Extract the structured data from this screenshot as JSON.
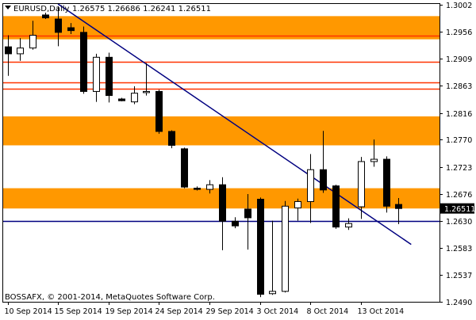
{
  "header": {
    "symbol": "EURUSD,Daily",
    "ohlc": "1.26575 1.26686 1.26241 1.26511"
  },
  "footer": {
    "copyright": "BOSSAFX, © 2001-2014, MetaQuotes Software Corp."
  },
  "chart_data": {
    "type": "candlestick",
    "symbol": "EURUSD",
    "timeframe": "Daily",
    "ylim": [
      1.249,
      1.3004
    ],
    "y_ticks": [
      1.3002,
      1.2956,
      1.2909,
      1.2863,
      1.2816,
      1.277,
      1.2723,
      1.2676,
      1.263,
      1.2583,
      1.2537,
      1.249
    ],
    "x_tick_labels": [
      {
        "label": "10 Sep 2014",
        "index": 0
      },
      {
        "label": "15 Sep 2014",
        "index": 4
      },
      {
        "label": "19 Sep 2014",
        "index": 8
      },
      {
        "label": "24 Sep 2014",
        "index": 12
      },
      {
        "label": "29 Sep 2014",
        "index": 16
      },
      {
        "label": "3 Oct 2014",
        "index": 20
      },
      {
        "label": "8 Oct 2014",
        "index": 24
      },
      {
        "label": "13 Oct 2014",
        "index": 28
      }
    ],
    "candles": [
      {
        "o": 1.293,
        "h": 1.295,
        "l": 1.288,
        "c": 1.2918
      },
      {
        "o": 1.2918,
        "h": 1.2945,
        "l": 1.2906,
        "c": 1.2928
      },
      {
        "o": 1.2928,
        "h": 1.2975,
        "l": 1.2925,
        "c": 1.295
      },
      {
        "o": 1.2985,
        "h": 1.2989,
        "l": 1.2978,
        "c": 1.298
      },
      {
        "o": 1.2978,
        "h": 1.3,
        "l": 1.2931,
        "c": 1.2955
      },
      {
        "o": 1.2963,
        "h": 1.2971,
        "l": 1.2952,
        "c": 1.2958
      },
      {
        "o": 1.2955,
        "h": 1.2965,
        "l": 1.2849,
        "c": 1.2853
      },
      {
        "o": 1.2853,
        "h": 1.2918,
        "l": 1.2835,
        "c": 1.2912
      },
      {
        "o": 1.2912,
        "h": 1.292,
        "l": 1.2834,
        "c": 1.2846
      },
      {
        "o": 1.284,
        "h": 1.2842,
        "l": 1.2836,
        "c": 1.2837
      },
      {
        "o": 1.2835,
        "h": 1.2862,
        "l": 1.2831,
        "c": 1.285
      },
      {
        "o": 1.2851,
        "h": 1.2902,
        "l": 1.2846,
        "c": 1.2853
      },
      {
        "o": 1.2853,
        "h": 1.2856,
        "l": 1.278,
        "c": 1.2784
      },
      {
        "o": 1.2784,
        "h": 1.2786,
        "l": 1.2755,
        "c": 1.276
      },
      {
        "o": 1.2754,
        "h": 1.2756,
        "l": 1.2686,
        "c": 1.2688
      },
      {
        "o": 1.2686,
        "h": 1.2689,
        "l": 1.2682,
        "c": 1.2684
      },
      {
        "o": 1.2684,
        "h": 1.27,
        "l": 1.2677,
        "c": 1.2692
      },
      {
        "o": 1.2692,
        "h": 1.2705,
        "l": 1.2579,
        "c": 1.2629
      },
      {
        "o": 1.2629,
        "h": 1.2636,
        "l": 1.2617,
        "c": 1.2621
      },
      {
        "o": 1.265,
        "h": 1.2676,
        "l": 1.258,
        "c": 1.2635
      },
      {
        "o": 1.2667,
        "h": 1.267,
        "l": 1.2498,
        "c": 1.2503
      },
      {
        "o": 1.2504,
        "h": 1.263,
        "l": 1.2502,
        "c": 1.2508
      },
      {
        "o": 1.2508,
        "h": 1.2664,
        "l": 1.2506,
        "c": 1.2655
      },
      {
        "o": 1.2652,
        "h": 1.2668,
        "l": 1.263,
        "c": 1.2663
      },
      {
        "o": 1.2663,
        "h": 1.2745,
        "l": 1.2626,
        "c": 1.2718
      },
      {
        "o": 1.2718,
        "h": 1.2785,
        "l": 1.2678,
        "c": 1.2683
      },
      {
        "o": 1.269,
        "h": 1.2692,
        "l": 1.2616,
        "c": 1.2619
      },
      {
        "o": 1.2619,
        "h": 1.2634,
        "l": 1.2614,
        "c": 1.2625
      },
      {
        "o": 1.2654,
        "h": 1.274,
        "l": 1.2633,
        "c": 1.2732
      },
      {
        "o": 1.2732,
        "h": 1.277,
        "l": 1.2723,
        "c": 1.2736
      },
      {
        "o": 1.2736,
        "h": 1.2741,
        "l": 1.2644,
        "c": 1.2655
      },
      {
        "o": 1.2658,
        "h": 1.2669,
        "l": 1.2624,
        "c": 1.2651
      }
    ],
    "bands": [
      {
        "from": 1.2943,
        "to": 1.2983
      },
      {
        "from": 1.276,
        "to": 1.281
      },
      {
        "from": 1.2651,
        "to": 1.2686
      }
    ],
    "h_lines": [
      1.295,
      1.2904,
      1.2868,
      1.2858
    ],
    "support_line": 1.263,
    "trendline": {
      "from": {
        "index": 4,
        "value": 1.3004
      },
      "to": {
        "index": 32,
        "value": 1.2589
      }
    },
    "current_price": "1.26511",
    "colors": {
      "band": "#ff9800",
      "h_line": "#ff3300",
      "trendline": "#000080",
      "support_line": "#000080",
      "candle": "#000000",
      "bull_body": "#ffffff",
      "bear_body": "#000000",
      "price_tag_bg": "#000000",
      "price_tag_text": "#ffffff"
    }
  }
}
